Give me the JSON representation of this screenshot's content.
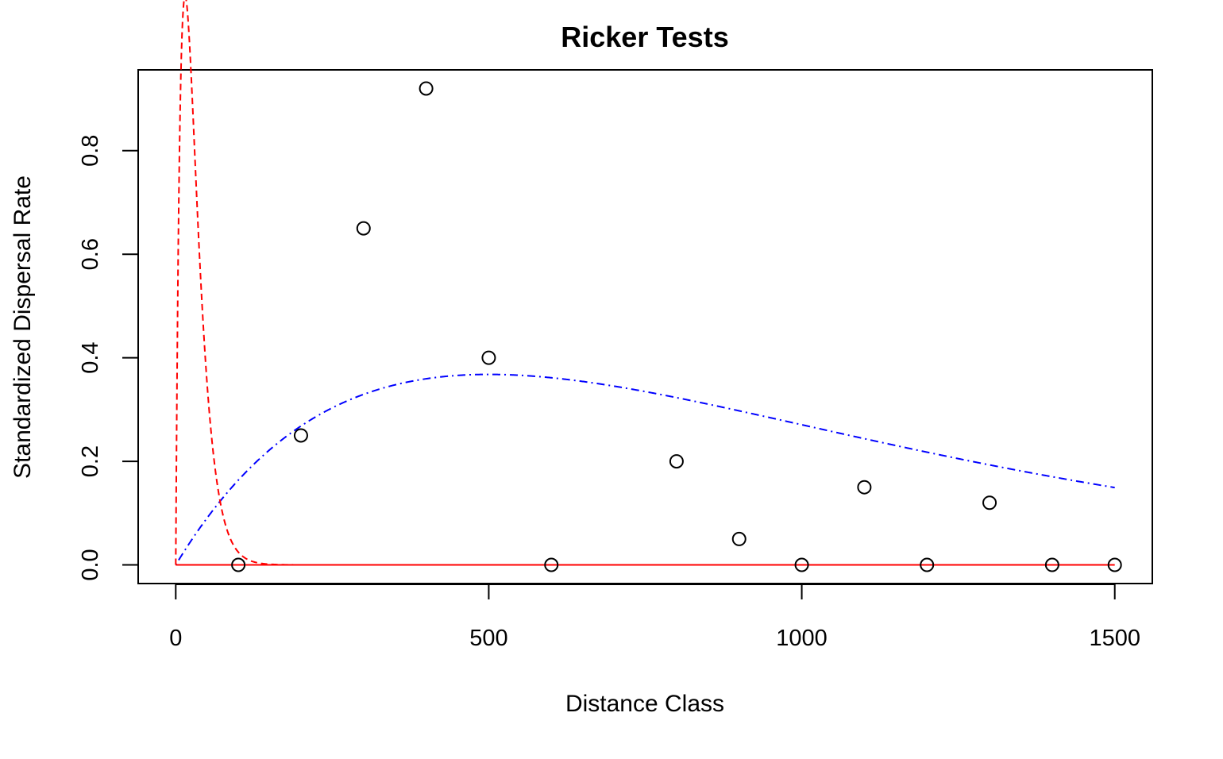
{
  "chart_data": {
    "type": "scatter",
    "title": "Ricker Tests",
    "xlabel": "Distance Class",
    "ylabel": "Standardized Dispersal Rate",
    "xlim": [
      -60,
      1560
    ],
    "ylim": [
      -0.036,
      0.956
    ],
    "xticks": [
      0,
      500,
      1000,
      1500
    ],
    "xtick_labels": [
      "0",
      "500",
      "1000",
      "1500"
    ],
    "yticks": [
      0.0,
      0.2,
      0.4,
      0.6,
      0.8
    ],
    "ytick_labels": [
      "0.0",
      "0.2",
      "0.4",
      "0.6",
      "0.8"
    ],
    "grid": false,
    "legend": "none",
    "series": [
      {
        "kind": "points",
        "marker": "open-circle",
        "color": "#000000",
        "x": [
          100,
          200,
          300,
          400,
          500,
          600,
          800,
          900,
          1000,
          1100,
          1200,
          1300,
          1400,
          1500
        ],
        "y": [
          0.0,
          0.25,
          0.65,
          0.92,
          0.4,
          0.0,
          0.2,
          0.05,
          0.0,
          0.15,
          0.0,
          0.12,
          0.0,
          0.0
        ]
      },
      {
        "kind": "curve",
        "model": "ricker",
        "a": 0.002,
        "b": 0.002,
        "x_range": [
          0,
          1500
        ],
        "color": "#0000ff",
        "dash": "dotdash"
      },
      {
        "kind": "curve",
        "model": "ricker",
        "a": 0.2,
        "b": 0.067,
        "x_range": [
          0,
          1500
        ],
        "color": "#ff0000",
        "dash": "dashed"
      },
      {
        "kind": "curve",
        "model": "ricker",
        "a": 0.0,
        "b": 0.001,
        "x_range": [
          0,
          1500
        ],
        "color": "#ff0000",
        "dash": "solid"
      }
    ]
  }
}
